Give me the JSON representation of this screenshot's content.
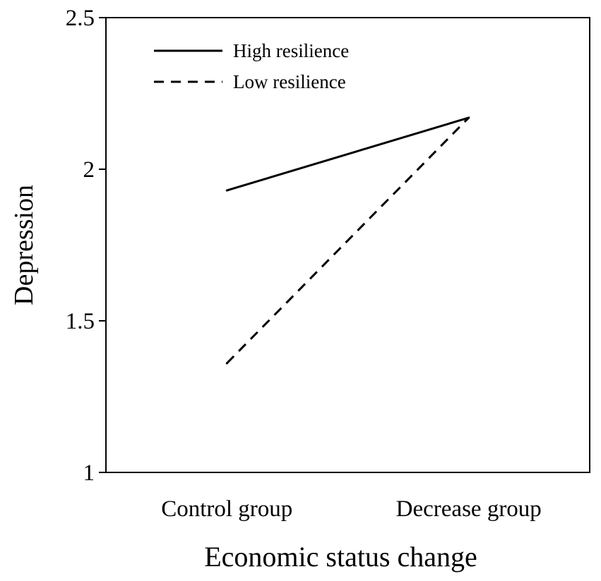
{
  "chart_data": {
    "type": "line",
    "title": "",
    "xlabel": "Economic status change",
    "ylabel": "Depression",
    "categories": [
      "Control group",
      "Decrease group"
    ],
    "ylim": [
      1,
      2.5
    ],
    "yticks": [
      "1",
      "1.5",
      "2",
      "2.5"
    ],
    "grid": false,
    "legend_position": "top-left",
    "series": [
      {
        "name": "High resilience",
        "values": [
          1.93,
          2.17
        ],
        "style": "solid",
        "color": "#000000"
      },
      {
        "name": "Low resilience",
        "values": [
          1.36,
          2.17
        ],
        "style": "dashed",
        "color": "#000000"
      }
    ]
  }
}
